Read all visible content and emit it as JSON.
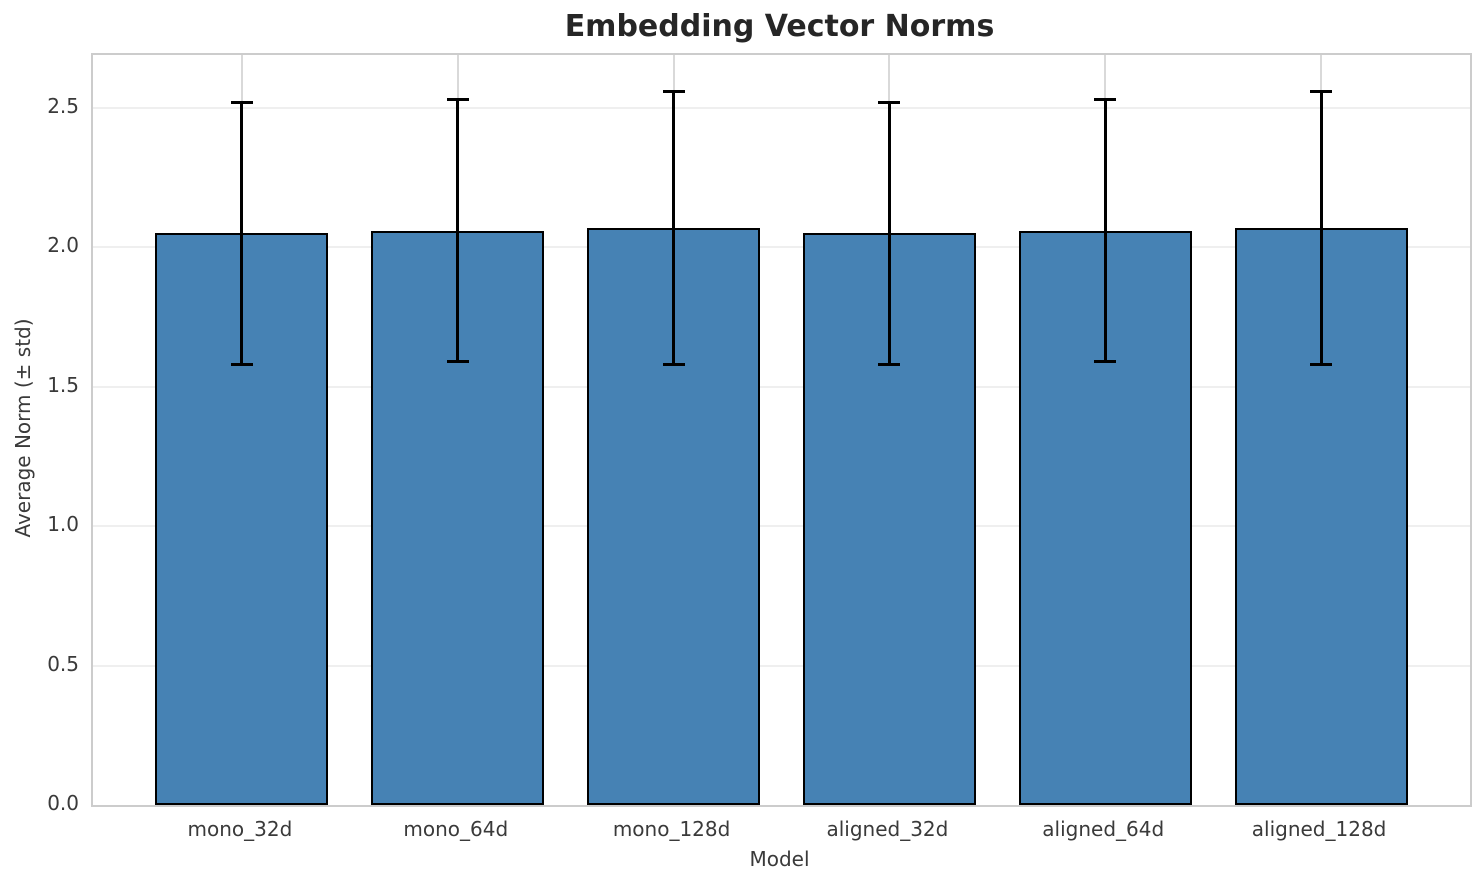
{
  "chart_data": {
    "type": "bar",
    "title": "Embedding Vector Norms",
    "xlabel": "Model",
    "ylabel": "Average Norm (± std)",
    "categories": [
      "mono_32d",
      "mono_64d",
      "mono_128d",
      "aligned_32d",
      "aligned_64d",
      "aligned_128d"
    ],
    "series": [
      {
        "name": "mean",
        "values": [
          2.05,
          2.06,
          2.07,
          2.05,
          2.06,
          2.07
        ]
      },
      {
        "name": "std",
        "values": [
          0.47,
          0.47,
          0.49,
          0.47,
          0.47,
          0.49
        ]
      }
    ],
    "ytick_labels": [
      "0.0",
      "0.5",
      "1.0",
      "1.5",
      "2.0",
      "2.5"
    ],
    "ytick_values": [
      0,
      0.5,
      1.0,
      1.5,
      2.0,
      2.5
    ],
    "ylim": [
      0,
      2.69
    ],
    "grid": "both",
    "legend": "none",
    "colors": {
      "bar_fill": "#4682b4",
      "bar_edge": "#000000",
      "error_bar": "#000000",
      "grid_h": "#efefef",
      "grid_v": "#d9d9d9",
      "spine": "#cccccc",
      "title_text": "#262626",
      "label_text": "#3a3a3a"
    }
  }
}
